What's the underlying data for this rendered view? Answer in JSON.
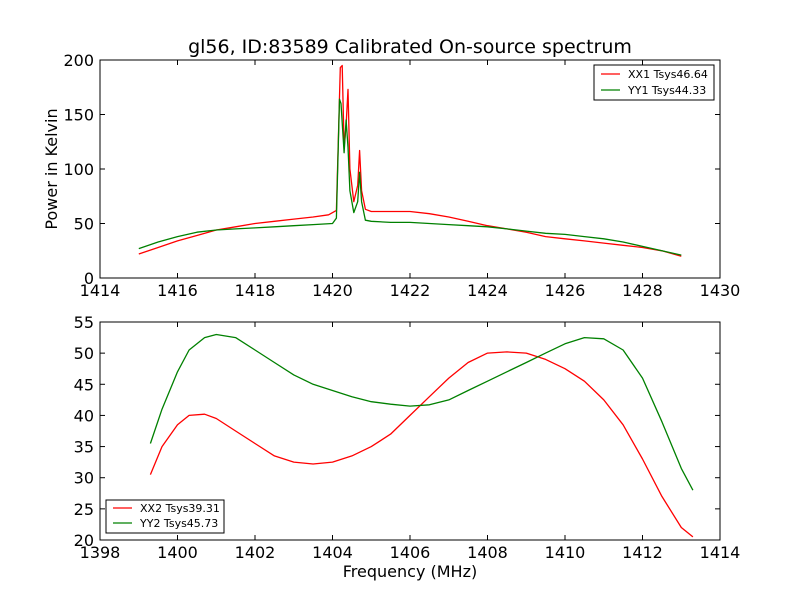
{
  "chart_data": [
    {
      "type": "line",
      "title": "gl56, ID:83589 Calibrated On-source spectrum",
      "xlabel": "",
      "ylabel": "Power in Kelvin",
      "xlim": [
        1414,
        1430
      ],
      "ylim": [
        0,
        200
      ],
      "xticks": [
        1414,
        1416,
        1418,
        1420,
        1422,
        1424,
        1426,
        1428,
        1430
      ],
      "yticks": [
        0,
        50,
        100,
        150,
        200
      ],
      "grid": false,
      "legend_position": "top-right",
      "series": [
        {
          "name": "XX1 Tsys46.64",
          "color": "#ff0000",
          "x": [
            1415,
            1415.5,
            1416,
            1416.5,
            1417,
            1417.5,
            1418,
            1418.5,
            1419,
            1419.5,
            1419.9,
            1420.1,
            1420.2,
            1420.25,
            1420.3,
            1420.35,
            1420.4,
            1420.45,
            1420.55,
            1420.65,
            1420.7,
            1420.75,
            1420.85,
            1421,
            1421.5,
            1422,
            1422.5,
            1423,
            1423.5,
            1424,
            1424.5,
            1425,
            1425.5,
            1426,
            1426.5,
            1427,
            1427.5,
            1428,
            1428.5,
            1429
          ],
          "y": [
            22,
            28,
            34,
            39,
            44,
            47,
            50,
            52,
            54,
            56,
            58,
            62,
            193,
            195,
            120,
            140,
            173,
            100,
            70,
            85,
            117,
            80,
            63,
            61,
            61,
            61,
            59,
            56,
            52,
            48,
            45,
            42,
            38,
            36,
            34,
            32,
            30,
            28,
            25,
            20
          ]
        },
        {
          "name": "YY1 Tsys44.33",
          "color": "#008000",
          "x": [
            1415,
            1415.5,
            1416,
            1416.5,
            1417,
            1417.5,
            1418,
            1418.5,
            1419,
            1419.5,
            1420,
            1420.1,
            1420.18,
            1420.22,
            1420.3,
            1420.35,
            1420.4,
            1420.45,
            1420.55,
            1420.65,
            1420.7,
            1420.75,
            1420.85,
            1421,
            1421.5,
            1422,
            1422.5,
            1423,
            1423.5,
            1424,
            1424.5,
            1425,
            1425.5,
            1426,
            1426.5,
            1427,
            1427.5,
            1428,
            1428.5,
            1429
          ],
          "y": [
            27,
            33,
            38,
            42,
            44,
            45,
            46,
            47,
            48,
            49,
            50,
            55,
            164,
            160,
            115,
            145,
            120,
            80,
            60,
            70,
            97,
            70,
            53,
            52,
            51,
            51,
            50,
            49,
            48,
            47,
            45,
            43,
            41,
            40,
            38,
            36,
            33,
            29,
            25,
            21
          ]
        }
      ]
    },
    {
      "type": "line",
      "title": "",
      "xlabel": "Frequency (MHz)",
      "ylabel": "",
      "xlim": [
        1398,
        1414
      ],
      "ylim": [
        20,
        55
      ],
      "xticks": [
        1398,
        1400,
        1402,
        1404,
        1406,
        1408,
        1410,
        1412,
        1414
      ],
      "yticks": [
        20,
        25,
        30,
        35,
        40,
        45,
        50,
        55
      ],
      "grid": false,
      "legend_position": "bottom-left",
      "series": [
        {
          "name": "XX2 Tsys39.31",
          "color": "#ff0000",
          "x": [
            1399.3,
            1399.6,
            1400,
            1400.3,
            1400.7,
            1401,
            1401.5,
            1402,
            1402.5,
            1403,
            1403.5,
            1404,
            1404.5,
            1405,
            1405.5,
            1406,
            1406.5,
            1407,
            1407.5,
            1408,
            1408.5,
            1409,
            1409.5,
            1410,
            1410.5,
            1411,
            1411.5,
            1412,
            1412.5,
            1413,
            1413.3
          ],
          "y": [
            30.5,
            35,
            38.5,
            40,
            40.2,
            39.5,
            37.5,
            35.5,
            33.5,
            32.5,
            32.2,
            32.5,
            33.5,
            35,
            37,
            40,
            43,
            46,
            48.5,
            50,
            50.2,
            50,
            49,
            47.5,
            45.5,
            42.5,
            38.5,
            33,
            27,
            22,
            20.5
          ]
        },
        {
          "name": "YY2 Tsys45.73",
          "color": "#008000",
          "x": [
            1399.3,
            1399.6,
            1400,
            1400.3,
            1400.7,
            1401,
            1401.5,
            1402,
            1402.5,
            1403,
            1403.5,
            1404,
            1404.5,
            1405,
            1405.5,
            1406,
            1406.5,
            1407,
            1407.5,
            1408,
            1408.5,
            1409,
            1409.5,
            1410,
            1410.5,
            1411,
            1411.5,
            1412,
            1412.5,
            1413,
            1413.3
          ],
          "y": [
            35.5,
            41,
            47,
            50.5,
            52.5,
            53,
            52.5,
            50.5,
            48.5,
            46.5,
            45,
            44,
            43,
            42.2,
            41.8,
            41.5,
            41.7,
            42.5,
            44,
            45.5,
            47,
            48.5,
            50,
            51.5,
            52.5,
            52.3,
            50.5,
            46,
            39,
            31.5,
            28
          ]
        }
      ]
    }
  ]
}
